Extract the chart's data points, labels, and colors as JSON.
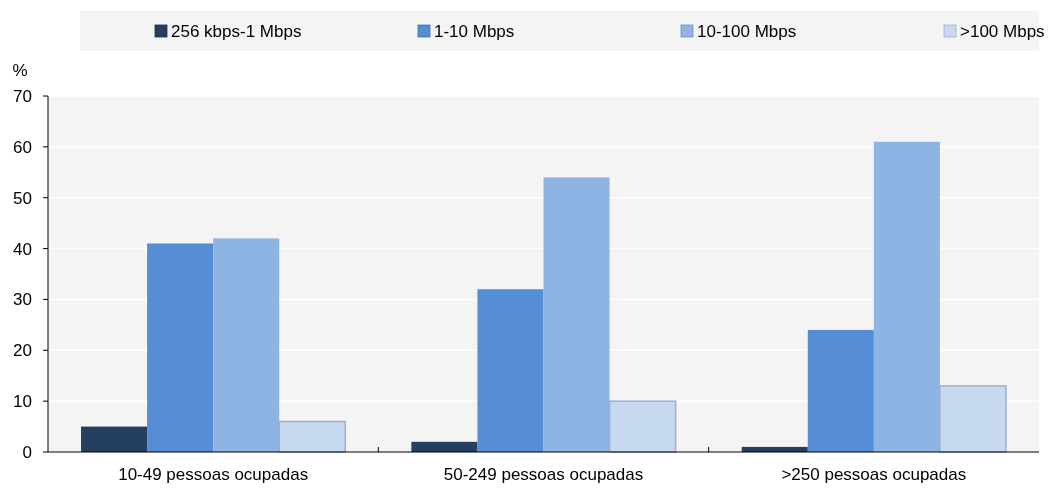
{
  "chart_data": {
    "type": "bar",
    "ylabel": "%",
    "categories": [
      "10-49 pessoas ocupadas",
      "50-249 pessoas ocupadas",
      ">250 pessoas ocupadas"
    ],
    "series": [
      {
        "name": "256 kbps-1 Mbps",
        "color": "#253f61",
        "values": [
          5,
          2,
          1
        ]
      },
      {
        "name": "1-10 Mbps",
        "color": "#558ed5",
        "values": [
          41,
          32,
          24
        ]
      },
      {
        "name": "10-100 Mbps",
        "color": "#8eb4e3",
        "values": [
          42,
          54,
          61
        ]
      },
      {
        "name": ">100 Mbps",
        "color": "#c6d9f1",
        "values": [
          6,
          10,
          13
        ]
      }
    ],
    "ylim": [
      0,
      70
    ],
    "yticks": [
      0,
      10,
      20,
      30,
      40,
      50,
      60,
      70
    ],
    "grid": "y",
    "legend": "top"
  }
}
